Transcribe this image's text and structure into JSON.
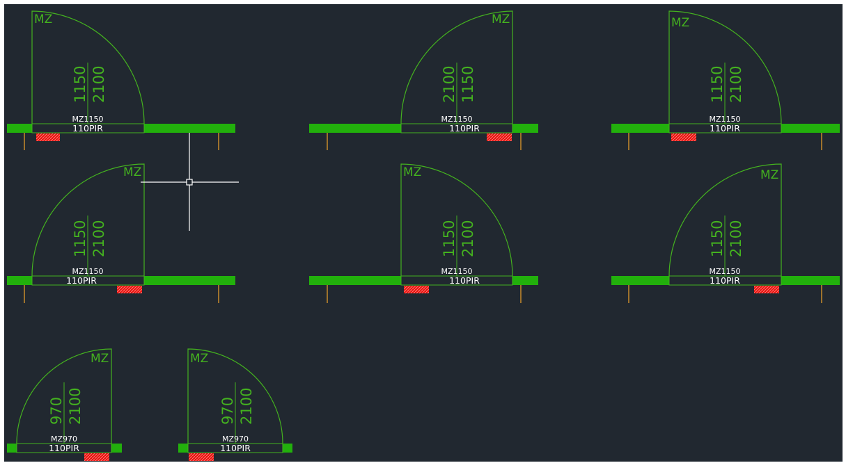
{
  "canvas": {
    "background": "#212830",
    "wall_color": "#22b00c",
    "door_line_color": "#44b21f",
    "fire_tag_color": "#e8140f",
    "leg_color": "#c98a2a",
    "cursor_color": "#ffffff"
  },
  "doors": [
    {
      "mz_label": "MZ",
      "dim_a": "1150",
      "dim_b": "2100",
      "code": "MZ1150",
      "type": "110PIR"
    },
    {
      "mz_label": "MZ",
      "dim_a": "2100",
      "dim_b": "1150",
      "code": "MZ1150",
      "type": "110PIR"
    },
    {
      "mz_label": "MZ",
      "dim_a": "1150",
      "dim_b": "2100",
      "code": "MZ1150",
      "type": "110PIR"
    },
    {
      "mz_label": "MZ",
      "dim_a": "1150",
      "dim_b": "2100",
      "code": "MZ1150",
      "type": "110PIR"
    },
    {
      "mz_label": "MZ",
      "dim_a": "1150",
      "dim_b": "2100",
      "code": "MZ1150",
      "type": "110PIR"
    },
    {
      "mz_label": "MZ",
      "dim_a": "1150",
      "dim_b": "2100",
      "code": "MZ1150",
      "type": "110PIR"
    },
    {
      "mz_label": "MZ",
      "dim_a": "970",
      "dim_b": "2100",
      "code": "MZ970",
      "type": "110PIR"
    },
    {
      "mz_label": "MZ",
      "dim_a": "970",
      "dim_b": "2100",
      "code": "MZ970",
      "type": "110PIR"
    }
  ],
  "crosshair_cursor": {
    "icon": "crosshair-pickbox-cursor"
  }
}
